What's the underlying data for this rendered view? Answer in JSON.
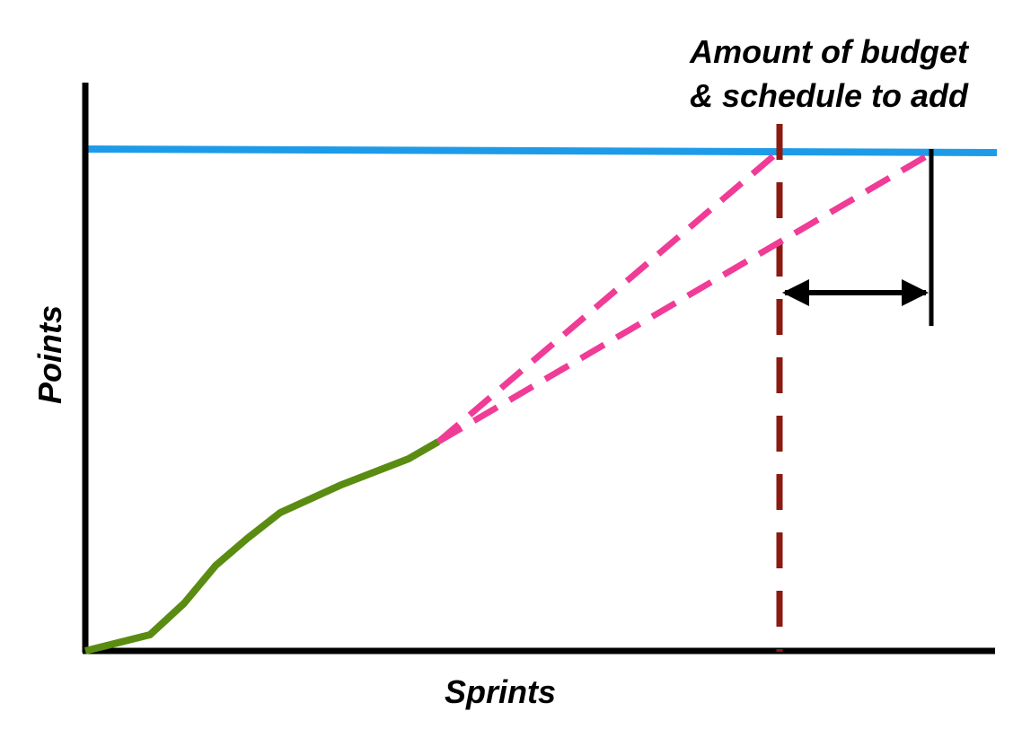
{
  "annotation": {
    "lines": [
      "Amount of budget",
      "& schedule to add"
    ]
  },
  "x_axis_label": "Sprints",
  "y_axis_label": "Points"
}
